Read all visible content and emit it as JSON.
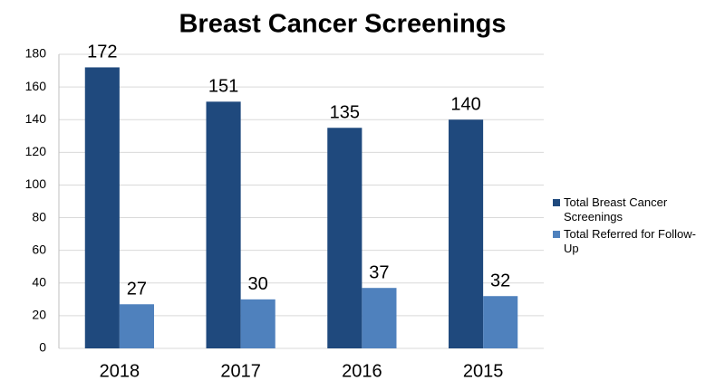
{
  "chart_data": {
    "type": "bar",
    "title": "Breast Cancer Screenings",
    "categories": [
      "2018",
      "2017",
      "2016",
      "2015"
    ],
    "series": [
      {
        "name": "Total Breast Cancer Screenings",
        "color": "#1f497d",
        "values": [
          172,
          151,
          135,
          140
        ]
      },
      {
        "name": "Total Referred for Follow-Up",
        "color": "#4f81bd",
        "values": [
          27,
          30,
          37,
          32
        ]
      }
    ],
    "ylim": [
      0,
      180
    ],
    "yticks": [
      0,
      20,
      40,
      60,
      80,
      100,
      120,
      140,
      160,
      180
    ],
    "grid": true,
    "legend": "right"
  }
}
